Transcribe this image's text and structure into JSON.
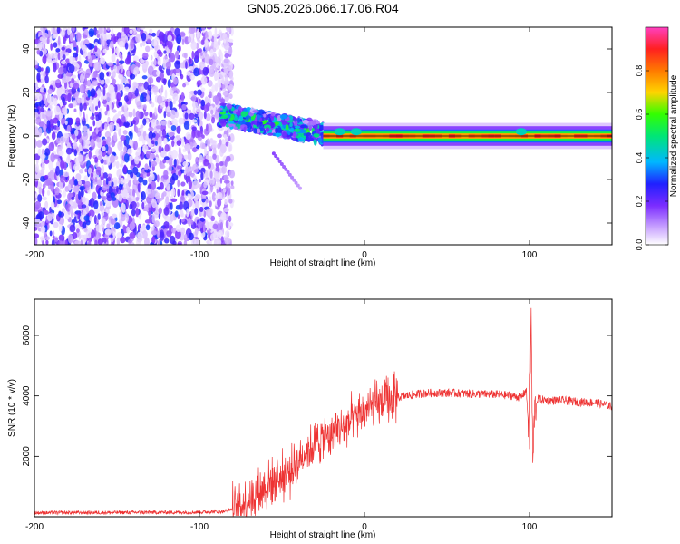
{
  "title": "GN05.2026.066.17.06.R04",
  "colors": {
    "snr_line": "#ee3333",
    "colormap": [
      "#ffffff",
      "#c9a3ff",
      "#7b2cff",
      "#2020ff",
      "#00b7ff",
      "#00e676",
      "#33ff00",
      "#ffd400",
      "#ff7a00",
      "#ff2020",
      "#ff40c0"
    ]
  },
  "chart_data": [
    {
      "id": "spectrogram",
      "type": "heatmap",
      "xlabel": "Height of straight line (km)",
      "ylabel": "Frequency (Hz)",
      "xlim": [
        -200,
        150
      ],
      "ylim": [
        -50,
        50
      ],
      "xticks": [
        -200,
        -100,
        0,
        100
      ],
      "xtick_labels": [
        "-200",
        "-100",
        "0",
        "100"
      ],
      "yticks": [
        -40,
        -20,
        0,
        20,
        40
      ],
      "ytick_labels": [
        "-40",
        "-20",
        "0",
        "20",
        "40"
      ],
      "colorbar": {
        "label": "Normalized spectral amplitude",
        "range": [
          0,
          1
        ],
        "ticks": [
          0.0,
          0.2,
          0.4,
          0.6,
          0.8
        ],
        "tick_labels": [
          "0.0",
          "0.2",
          "0.4",
          "0.6",
          "0.8"
        ]
      },
      "features": [
        {
          "region": "noise",
          "x_range": [
            -200,
            -80
          ],
          "freq_range": [
            -50,
            50
          ],
          "amplitude": 0.15
        },
        {
          "region": "signal_band",
          "x_range": [
            -88,
            -25
          ],
          "center_freq_start": 10,
          "center_freq_end": 1,
          "amplitude": 0.5
        },
        {
          "region": "carrier",
          "x_range": [
            -25,
            150
          ],
          "center_freq": 0,
          "amplitude": 0.9
        }
      ]
    },
    {
      "id": "snr",
      "type": "line",
      "xlabel": "Height of straight line (km)",
      "ylabel": "SNR (10 * v/v)",
      "xlim": [
        -200,
        150
      ],
      "ylim": [
        0,
        7200
      ],
      "xticks": [
        -200,
        -100,
        0,
        100
      ],
      "xtick_labels": [
        "-200",
        "-100",
        "0",
        "100"
      ],
      "yticks": [
        2000,
        4000,
        6000
      ],
      "ytick_labels": [
        "2000",
        "4000",
        "6000"
      ],
      "series": [
        {
          "name": "SNR",
          "x": [
            -200,
            -150,
            -100,
            -85,
            -75,
            -65,
            -55,
            -45,
            -35,
            -25,
            -15,
            -5,
            0,
            5,
            10,
            20,
            30,
            40,
            50,
            60,
            70,
            80,
            90,
            95,
            98,
            100,
            101,
            102,
            103,
            105,
            110,
            120,
            130,
            140,
            150
          ],
          "y": [
            130,
            140,
            150,
            180,
            350,
            800,
            1200,
            1500,
            2200,
            2600,
            2900,
            3300,
            3500,
            3650,
            3750,
            3950,
            4050,
            4100,
            4100,
            4080,
            4060,
            4050,
            4000,
            3950,
            4200,
            2500,
            6800,
            1600,
            3500,
            3900,
            3850,
            3850,
            3800,
            3780,
            3650
          ]
        }
      ]
    }
  ]
}
